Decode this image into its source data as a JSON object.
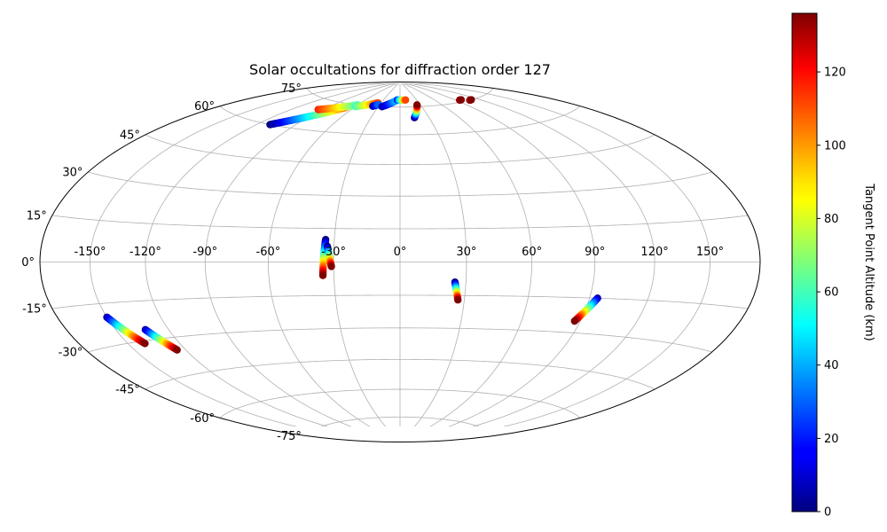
{
  "chart_data": {
    "type": "scatter",
    "projection": "aitoff-hammer",
    "title": "Solar occultations for diffraction order 127",
    "grid": true,
    "lon_ticks": [
      -150,
      -120,
      -90,
      -60,
      -30,
      0,
      30,
      60,
      90,
      120,
      150
    ],
    "lat_ticks": [
      -75,
      -60,
      -45,
      -30,
      -15,
      0,
      15,
      30,
      45,
      60,
      75
    ],
    "lon_tick_labels": [
      "-150°",
      "-120°",
      "-90°",
      "-60°",
      "-30°",
      "0°",
      "30°",
      "60°",
      "90°",
      "120°",
      "150°"
    ],
    "lat_tick_labels": [
      "-75°",
      "-60°",
      "-45°",
      "-30°",
      "-15°",
      "0°",
      "15°",
      "30°",
      "45°",
      "60°",
      "75°"
    ],
    "colorbar": {
      "label": "Tangent Point Altitude (km)",
      "min": 0,
      "max": 136,
      "ticks": [
        0,
        20,
        40,
        60,
        80,
        100,
        120
      ],
      "tick_labels": [
        "0",
        "20",
        "40",
        "60",
        "80",
        "100",
        "120"
      ],
      "colormap": "jet"
    },
    "tracks": [
      {
        "lon_start": -150,
        "lat_start": -20,
        "lon_end": -140,
        "lat_end": -31,
        "alt_start": 5,
        "alt_end": 136
      },
      {
        "lon_start": -133,
        "lat_start": -26,
        "lon_end": -125,
        "lat_end": -35,
        "alt_start": 5,
        "alt_end": 136
      },
      {
        "lon_start": -34,
        "lat_start": 10,
        "lon_end": -35,
        "lat_end": -6,
        "alt_start": 0,
        "alt_end": 136
      },
      {
        "lon_start": -33,
        "lat_start": 7,
        "lon_end": -31,
        "lat_end": -2,
        "alt_start": 0,
        "alt_end": 136
      },
      {
        "lon_start": 25,
        "lat_start": -9,
        "lon_end": 27,
        "lat_end": -17,
        "alt_start": 0,
        "alt_end": 136
      },
      {
        "lon_start": 94,
        "lat_start": -15,
        "lon_end": 87,
        "lat_end": -25,
        "alt_start": 5,
        "alt_end": 136
      },
      {
        "lon_start": -110,
        "lat_start": 60,
        "lon_end": -70,
        "lat_end": 73,
        "alt_start": 0,
        "alt_end": 105
      },
      {
        "lon_start": -95,
        "lat_start": 70,
        "lon_end": -60,
        "lat_end": 75,
        "alt_start": 115,
        "alt_end": 60
      },
      {
        "lon_start": -60,
        "lat_start": 74,
        "lon_end": -35,
        "lat_end": 77,
        "alt_start": 60,
        "alt_end": 110
      },
      {
        "lon_start": -38,
        "lat_start": 75,
        "lon_end": -32,
        "lat_end": 76,
        "alt_start": 5,
        "alt_end": 30
      },
      {
        "lon_start": -25,
        "lat_start": 75,
        "lon_end": -5,
        "lat_end": 79,
        "alt_start": 5,
        "alt_end": 45
      },
      {
        "lon_start": -5,
        "lat_start": 79,
        "lon_end": 10,
        "lat_end": 79,
        "alt_start": 20,
        "alt_end": 110
      },
      {
        "lon_start": 15,
        "lat_start": 69,
        "lon_end": 25,
        "lat_end": 76,
        "alt_start": 0,
        "alt_end": 136
      },
      {
        "lon_start": 95,
        "lat_start": 76,
        "lon_end": 98,
        "lat_end": 76,
        "alt_start": 130,
        "alt_end": 136
      },
      {
        "lon_start": 107,
        "lat_start": 75,
        "lon_end": 110,
        "lat_end": 75,
        "alt_start": 130,
        "alt_end": 136
      }
    ]
  }
}
